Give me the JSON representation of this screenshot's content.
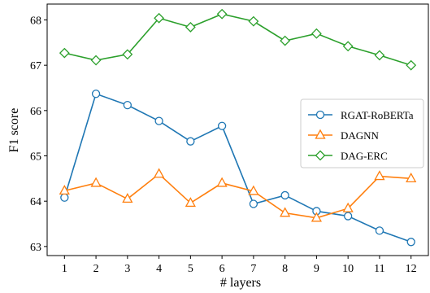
{
  "chart_data": {
    "type": "line",
    "xlabel": "# layers",
    "ylabel": "F1 score",
    "x": [
      1,
      2,
      3,
      4,
      5,
      6,
      7,
      8,
      9,
      10,
      11,
      12
    ],
    "xticks": [
      "1",
      "2",
      "3",
      "4",
      "5",
      "6",
      "7",
      "8",
      "9",
      "10",
      "11",
      "12"
    ],
    "yticks": [
      "63",
      "64",
      "65",
      "66",
      "67",
      "68"
    ],
    "xlim": [
      0.45,
      12.55
    ],
    "ylim": [
      62.8,
      68.35
    ],
    "grid": false,
    "legend_position": "right",
    "series": [
      {
        "name": "RGAT-RoBERTa",
        "color": "#1f77b4",
        "marker": "circle",
        "values": [
          64.08,
          66.37,
          66.12,
          65.77,
          65.32,
          65.66,
          63.94,
          64.13,
          63.78,
          63.67,
          63.35,
          63.1
        ]
      },
      {
        "name": "DAGNN",
        "color": "#ff7f0e",
        "marker": "triangle",
        "values": [
          64.23,
          64.4,
          64.05,
          64.6,
          63.96,
          64.4,
          64.22,
          63.74,
          63.63,
          63.84,
          64.55,
          64.5
        ]
      },
      {
        "name": "DAG-ERC",
        "color": "#2ca02c",
        "marker": "diamond",
        "values": [
          67.27,
          67.11,
          67.24,
          68.04,
          67.84,
          68.13,
          67.97,
          67.54,
          67.7,
          67.42,
          67.22,
          67.0
        ]
      }
    ]
  }
}
